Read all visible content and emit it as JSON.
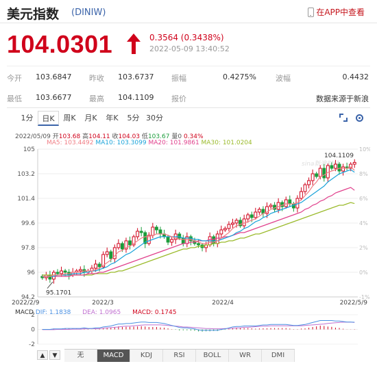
{
  "header": {
    "title": "美元指数",
    "code": "(DINIW)",
    "app_link": "在APP中查看"
  },
  "quote": {
    "price": "104.0301",
    "change": "0.3564 (0.3438%)",
    "time": "2022-05-09 13:40:52"
  },
  "stats": [
    {
      "label": "今开",
      "value": "103.6847"
    },
    {
      "label": "昨收",
      "value": "103.6737"
    },
    {
      "label": "振幅",
      "value": "0.4275%"
    },
    {
      "label": "波幅",
      "value": "0.4432"
    },
    {
      "label": "最低",
      "value": "103.6677"
    },
    {
      "label": "最高",
      "value": "104.1109"
    },
    {
      "label": "报价",
      "value": ""
    },
    {
      "label": "",
      "value": "数据来源于新浪"
    }
  ],
  "tabs": [
    "1分",
    "日K",
    "周K",
    "月K",
    "年K",
    "5分",
    "30分"
  ],
  "active_tab": "日K",
  "ohlc_line": {
    "date": "2022/05/09",
    "open_label": "开",
    "open": "103.68",
    "high_label": "高",
    "high": "104.11",
    "close_label": "收",
    "close": "104.03",
    "low_label": "低",
    "low": "103.67",
    "vol_label": "量",
    "vol": "0",
    "pct": "0.34%"
  },
  "ma_line": {
    "ma5": "MA5: 103.4492",
    "ma10": "MA10: 103.3099",
    "ma20": "MA20: 101.9861",
    "ma30": "MA30: 101.0204"
  },
  "macd_line": {
    "name": "MACD",
    "dif": "DIF: 1.1838",
    "dea": "DEA: 1.0965",
    "macd": "MACD: 0.1745"
  },
  "bottom_tabs": [
    "无",
    "MACD",
    "KDJ",
    "RSI",
    "BOLL",
    "WR",
    "DMI"
  ],
  "active_bottom_tab": "MACD",
  "watermark": "sina新浪财经",
  "colors": {
    "up": "#d0021b",
    "down": "#1a9c3a",
    "ma5": "#f07e85",
    "ma10": "#1aa3d9",
    "ma20": "#e0408c",
    "ma30": "#9aba2a",
    "dif": "#4a90e2",
    "dea": "#c070d0"
  },
  "chart_data": {
    "type": "candlestick",
    "y_ticks": [
      "105",
      "103.2",
      "101.4",
      "99.6",
      "97.8",
      "96",
      "94.2"
    ],
    "pct_ticks": [
      "10%",
      "8%",
      "6%",
      "4%",
      "2%",
      "0%",
      "-1%"
    ],
    "ylim": [
      94.2,
      105
    ],
    "x_ticks": [
      "2022/2/9",
      "2022/3",
      "2022/4",
      "2022/5/9"
    ],
    "min_label": "95.1701",
    "max_label": "104.1109",
    "macd_ticks": [
      "2",
      "0",
      "-2"
    ],
    "close_series": [
      95.6,
      95.8,
      95.5,
      96.0,
      95.9,
      96.1,
      96.0,
      95.8,
      96.0,
      96.1,
      96.2,
      96.0,
      96.1,
      96.3,
      96.6,
      96.4,
      97.3,
      97.5,
      97.0,
      97.8,
      98.1,
      97.7,
      98.3,
      98.0,
      98.6,
      99.0,
      98.9,
      98.1,
      98.7,
      99.3,
      99.1,
      98.8,
      98.6,
      98.2,
      98.4,
      98.8,
      98.5,
      98.1,
      98.6,
      98.3,
      98.1,
      98.0,
      97.8,
      98.0,
      98.6,
      98.1,
      98.8,
      99.1,
      99.2,
      99.5,
      99.6,
      99.8,
      99.4,
      99.9,
      100.2,
      100.0,
      100.4,
      100.6,
      100.3,
      100.8,
      100.9,
      100.6,
      101.1,
      100.8,
      101.3,
      101.0,
      100.7,
      101.4,
      101.9,
      102.4,
      102.7,
      103.2,
      103.0,
      103.6,
      102.9,
      103.8,
      103.6,
      103.9,
      103.4,
      103.7,
      103.6,
      103.9,
      104.03
    ],
    "ma5": [
      95.7,
      95.7,
      95.7,
      95.8,
      95.8,
      95.8,
      95.9,
      95.9,
      96.0,
      96.0,
      96.0,
      96.1,
      96.1,
      96.1,
      96.2,
      96.3,
      96.5,
      96.7,
      96.9,
      97.2,
      97.5,
      97.6,
      97.8,
      97.9,
      98.1,
      98.3,
      98.5,
      98.6,
      98.6,
      98.7,
      98.8,
      98.8,
      98.8,
      98.7,
      98.6,
      98.5,
      98.4,
      98.4,
      98.4,
      98.4,
      98.3,
      98.2,
      98.1,
      98.1,
      98.2,
      98.2,
      98.3,
      98.5,
      98.7,
      98.9,
      99.2,
      99.4,
      99.5,
      99.6,
      99.7,
      99.8,
      99.9,
      100.1,
      100.3,
      100.4,
      100.6,
      100.7,
      100.8,
      100.9,
      101.0,
      101.0,
      101.0,
      101.1,
      101.3,
      101.6,
      101.9,
      102.3,
      102.6,
      103.0,
      103.1,
      103.3,
      103.4,
      103.5,
      103.6,
      103.6,
      103.6,
      103.7,
      103.45
    ],
    "ma10": [
      95.7,
      95.7,
      95.7,
      95.7,
      95.8,
      95.8,
      95.8,
      95.8,
      95.9,
      95.9,
      95.9,
      96.0,
      96.0,
      96.1,
      96.1,
      96.2,
      96.3,
      96.4,
      96.6,
      96.7,
      96.9,
      97.1,
      97.3,
      97.4,
      97.6,
      97.8,
      98.0,
      98.2,
      98.3,
      98.4,
      98.5,
      98.6,
      98.6,
      98.6,
      98.6,
      98.6,
      98.6,
      98.5,
      98.5,
      98.5,
      98.4,
      98.4,
      98.3,
      98.3,
      98.3,
      98.3,
      98.3,
      98.4,
      98.5,
      98.6,
      98.7,
      98.9,
      99.0,
      99.2,
      99.3,
      99.5,
      99.7,
      99.8,
      100.0,
      100.1,
      100.3,
      100.4,
      100.5,
      100.6,
      100.7,
      100.8,
      100.9,
      101.0,
      101.1,
      101.3,
      101.5,
      101.7,
      101.9,
      102.1,
      102.3,
      102.6,
      102.8,
      103.0,
      103.2,
      103.3,
      103.4,
      103.5,
      103.31
    ],
    "ma20": [
      95.7,
      95.7,
      95.7,
      95.7,
      95.7,
      95.7,
      95.7,
      95.7,
      95.8,
      95.8,
      95.8,
      95.8,
      95.9,
      95.9,
      95.9,
      96.0,
      96.0,
      96.1,
      96.2,
      96.3,
      96.4,
      96.5,
      96.6,
      96.7,
      96.8,
      96.9,
      97.0,
      97.1,
      97.2,
      97.3,
      97.4,
      97.5,
      97.6,
      97.7,
      97.8,
      97.9,
      98.0,
      98.1,
      98.1,
      98.2,
      98.2,
      98.3,
      98.3,
      98.3,
      98.4,
      98.4,
      98.5,
      98.5,
      98.6,
      98.6,
      98.7,
      98.8,
      98.9,
      98.9,
      99.0,
      99.1,
      99.2,
      99.3,
      99.4,
      99.5,
      99.6,
      99.7,
      99.8,
      99.9,
      100.0,
      100.1,
      100.2,
      100.3,
      100.4,
      100.6,
      100.7,
      100.9,
      101.0,
      101.2,
      101.3,
      101.5,
      101.6,
      101.8,
      101.9,
      102.0,
      102.1,
      102.2,
      101.99
    ],
    "ma30": [
      95.8,
      95.8,
      95.8,
      95.8,
      95.8,
      95.8,
      95.8,
      95.8,
      95.8,
      95.8,
      95.8,
      95.8,
      95.8,
      95.8,
      95.9,
      95.9,
      95.9,
      95.9,
      96.0,
      96.0,
      96.1,
      96.1,
      96.2,
      96.3,
      96.4,
      96.5,
      96.6,
      96.7,
      96.8,
      96.9,
      97.0,
      97.1,
      97.2,
      97.3,
      97.4,
      97.5,
      97.6,
      97.7,
      97.7,
      97.8,
      97.8,
      97.9,
      97.9,
      98.0,
      98.0,
      98.1,
      98.1,
      98.2,
      98.2,
      98.3,
      98.3,
      98.4,
      98.5,
      98.5,
      98.6,
      98.7,
      98.8,
      98.8,
      98.9,
      99.0,
      99.1,
      99.2,
      99.3,
      99.4,
      99.5,
      99.6,
      99.7,
      99.8,
      99.9,
      100.0,
      100.1,
      100.2,
      100.3,
      100.4,
      100.5,
      100.6,
      100.7,
      100.8,
      100.9,
      100.9,
      101.0,
      101.1,
      101.02
    ]
  }
}
